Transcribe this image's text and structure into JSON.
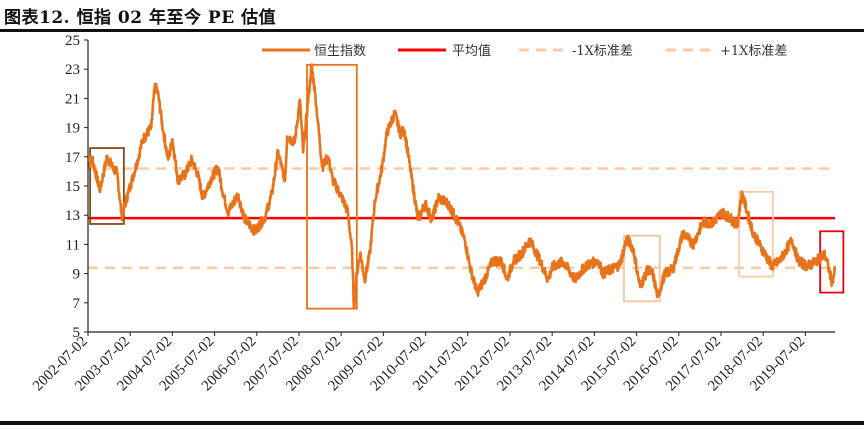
{
  "title": "图表12.  恒指 02 年至今 PE 估值",
  "chart_data": {
    "type": "line",
    "title": "图表12.  恒指 02 年至今 PE 估值",
    "xlabel": "",
    "ylabel": "",
    "ylim": [
      5,
      25
    ],
    "yticks": [
      5,
      7,
      9,
      11,
      13,
      15,
      17,
      19,
      21,
      23,
      25
    ],
    "xlim": [
      2002.5,
      2020.3
    ],
    "xtick_labels": [
      "2002-07-02",
      "2003-07-02",
      "2004-07-02",
      "2005-07-02",
      "2006-07-02",
      "2007-07-02",
      "2008-07-02",
      "2009-07-02",
      "2010-07-02",
      "2011-07-02",
      "2012-07-02",
      "2013-07-02",
      "2014-07-02",
      "2015-07-02",
      "2016-07-02",
      "2017-07-02",
      "2018-07-02",
      "2019-07-02"
    ],
    "grid": false,
    "legend_position": "top",
    "legend": [
      "恒生指数",
      "平均值",
      "-1X标准差",
      "+1X标准差"
    ],
    "colors": {
      "series": "#E8731A",
      "mean": "#FF0000",
      "band": "#F9CBA7"
    },
    "mean": 12.8,
    "minus_1sd": 9.4,
    "plus_1sd": 16.2,
    "series": [
      {
        "name": "恒生指数",
        "x_unit": "decimal year",
        "points": [
          [
            2002.5,
            16.4
          ],
          [
            2002.6,
            16.9
          ],
          [
            2002.78,
            14.7
          ],
          [
            2002.95,
            17.0
          ],
          [
            2003.1,
            16.2
          ],
          [
            2003.19,
            15.9
          ],
          [
            2003.3,
            12.9
          ],
          [
            2003.45,
            14.5
          ],
          [
            2003.68,
            16.8
          ],
          [
            2003.8,
            18.2
          ],
          [
            2004.0,
            19.0
          ],
          [
            2004.08,
            21.8
          ],
          [
            2004.15,
            21.5
          ],
          [
            2004.28,
            18.8
          ],
          [
            2004.4,
            16.8
          ],
          [
            2004.5,
            18.2
          ],
          [
            2004.63,
            15.4
          ],
          [
            2004.8,
            15.8
          ],
          [
            2004.96,
            16.8
          ],
          [
            2005.1,
            15.8
          ],
          [
            2005.22,
            14.2
          ],
          [
            2005.4,
            15.4
          ],
          [
            2005.58,
            16.3
          ],
          [
            2005.7,
            14.5
          ],
          [
            2005.82,
            13.2
          ],
          [
            2006.05,
            14.4
          ],
          [
            2006.22,
            12.7
          ],
          [
            2006.46,
            11.9
          ],
          [
            2006.7,
            12.9
          ],
          [
            2006.86,
            14.5
          ],
          [
            2007.0,
            17.3
          ],
          [
            2007.17,
            15.4
          ],
          [
            2007.22,
            18.4
          ],
          [
            2007.4,
            18.0
          ],
          [
            2007.52,
            20.9
          ],
          [
            2007.6,
            17.3
          ],
          [
            2007.7,
            20.4
          ],
          [
            2007.8,
            23.3
          ],
          [
            2007.88,
            21.4
          ],
          [
            2007.95,
            19.3
          ],
          [
            2008.05,
            16.3
          ],
          [
            2008.19,
            17.0
          ],
          [
            2008.3,
            15.4
          ],
          [
            2008.52,
            14.2
          ],
          [
            2008.66,
            13.2
          ],
          [
            2008.76,
            10.4
          ],
          [
            2008.8,
            6.7
          ],
          [
            2008.87,
            9.0
          ],
          [
            2008.95,
            10.4
          ],
          [
            2009.06,
            8.6
          ],
          [
            2009.18,
            10.4
          ],
          [
            2009.3,
            14.0
          ],
          [
            2009.47,
            16.3
          ],
          [
            2009.58,
            18.6
          ],
          [
            2009.77,
            20.0
          ],
          [
            2009.9,
            18.6
          ],
          [
            2010.0,
            18.8
          ],
          [
            2010.13,
            16.3
          ],
          [
            2010.32,
            12.7
          ],
          [
            2010.49,
            13.8
          ],
          [
            2010.65,
            12.7
          ],
          [
            2010.8,
            14.2
          ],
          [
            2011.03,
            13.8
          ],
          [
            2011.27,
            12.5
          ],
          [
            2011.43,
            11.3
          ],
          [
            2011.55,
            9.5
          ],
          [
            2011.72,
            7.7
          ],
          [
            2011.86,
            8.4
          ],
          [
            2012.1,
            9.9
          ],
          [
            2012.31,
            9.8
          ],
          [
            2012.43,
            8.6
          ],
          [
            2012.57,
            9.8
          ],
          [
            2012.78,
            10.4
          ],
          [
            2012.97,
            11.3
          ],
          [
            2013.21,
            9.9
          ],
          [
            2013.4,
            8.6
          ],
          [
            2013.52,
            9.5
          ],
          [
            2013.76,
            9.8
          ],
          [
            2014.04,
            8.6
          ],
          [
            2014.28,
            9.5
          ],
          [
            2014.59,
            9.9
          ],
          [
            2014.7,
            9.0
          ],
          [
            2015.1,
            9.6
          ],
          [
            2015.27,
            11.4
          ],
          [
            2015.42,
            10.7
          ],
          [
            2015.58,
            8.1
          ],
          [
            2015.77,
            9.3
          ],
          [
            2015.89,
            8.9
          ],
          [
            2016.0,
            7.4
          ],
          [
            2016.17,
            9.0
          ],
          [
            2016.36,
            9.3
          ],
          [
            2016.6,
            11.8
          ],
          [
            2016.84,
            11.0
          ],
          [
            2017.07,
            12.5
          ],
          [
            2017.31,
            12.5
          ],
          [
            2017.52,
            13.2
          ],
          [
            2017.72,
            12.8
          ],
          [
            2017.88,
            12.3
          ],
          [
            2018.0,
            14.5
          ],
          [
            2018.12,
            13.2
          ],
          [
            2018.26,
            11.8
          ],
          [
            2018.43,
            10.9
          ],
          [
            2018.71,
            9.5
          ],
          [
            2018.9,
            9.9
          ],
          [
            2019.18,
            11.3
          ],
          [
            2019.33,
            9.9
          ],
          [
            2019.54,
            9.5
          ],
          [
            2019.68,
            9.7
          ],
          [
            2019.96,
            10.3
          ],
          [
            2020.04,
            9.5
          ],
          [
            2020.13,
            8.4
          ],
          [
            2020.2,
            9.2
          ]
        ]
      }
    ],
    "highlight_boxes": [
      {
        "x": [
          2002.55,
          2003.35
        ],
        "y": [
          12.4,
          17.6
        ],
        "color": "#8B4A14"
      },
      {
        "x": [
          2007.69,
          2008.87
        ],
        "y": [
          6.6,
          23.3
        ],
        "color": "#E8731A"
      },
      {
        "x": [
          2015.2,
          2016.05
        ],
        "y": [
          7.1,
          11.6
        ],
        "color": "#F9C49C"
      },
      {
        "x": [
          2017.93,
          2018.73
        ],
        "y": [
          8.8,
          14.6
        ],
        "color": "#F9CBA7"
      },
      {
        "x": [
          2019.85,
          2020.4
        ],
        "y": [
          7.7,
          11.9
        ],
        "color": "#E8000B"
      }
    ]
  }
}
